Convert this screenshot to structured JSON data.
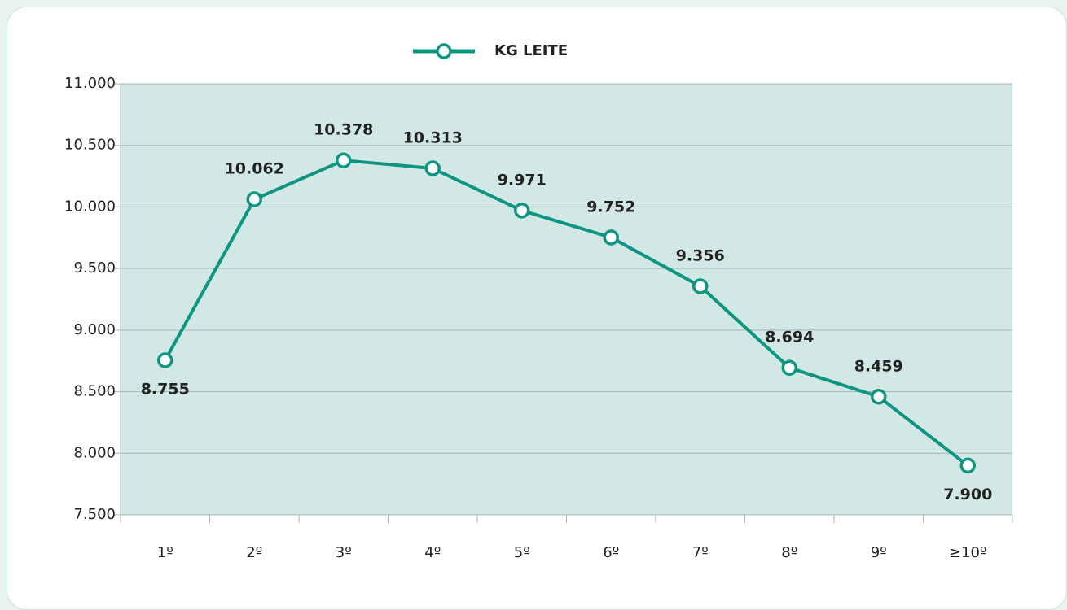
{
  "chart_data": {
    "type": "line",
    "categories": [
      "1º",
      "2º",
      "3º",
      "4º",
      "5º",
      "6º",
      "7º",
      "8º",
      "9º",
      "≥10º"
    ],
    "series": [
      {
        "name": "KG LEITE",
        "color": "#0e9582",
        "values": [
          8755,
          10062,
          10378,
          10313,
          9971,
          9752,
          9356,
          8694,
          8459,
          7900
        ],
        "value_labels": [
          "8.755",
          "10.062",
          "10.378",
          "10.313",
          "9.971",
          "9.752",
          "9.356",
          "8.694",
          "8.459",
          "7.900"
        ]
      }
    ],
    "ylim": [
      7500,
      11000
    ],
    "yticks": [
      {
        "value": 7500,
        "label": "7.500"
      },
      {
        "value": 8000,
        "label": "8.000"
      },
      {
        "value": 8500,
        "label": "8.500"
      },
      {
        "value": 9000,
        "label": "9.000"
      },
      {
        "value": 9500,
        "label": "9.500"
      },
      {
        "value": 10000,
        "label": "10.000"
      },
      {
        "value": 10500,
        "label": "10.500"
      },
      {
        "value": 11000,
        "label": "11.000"
      }
    ],
    "grid": true,
    "plot_background": "#d1e8e4",
    "legend": "top"
  }
}
